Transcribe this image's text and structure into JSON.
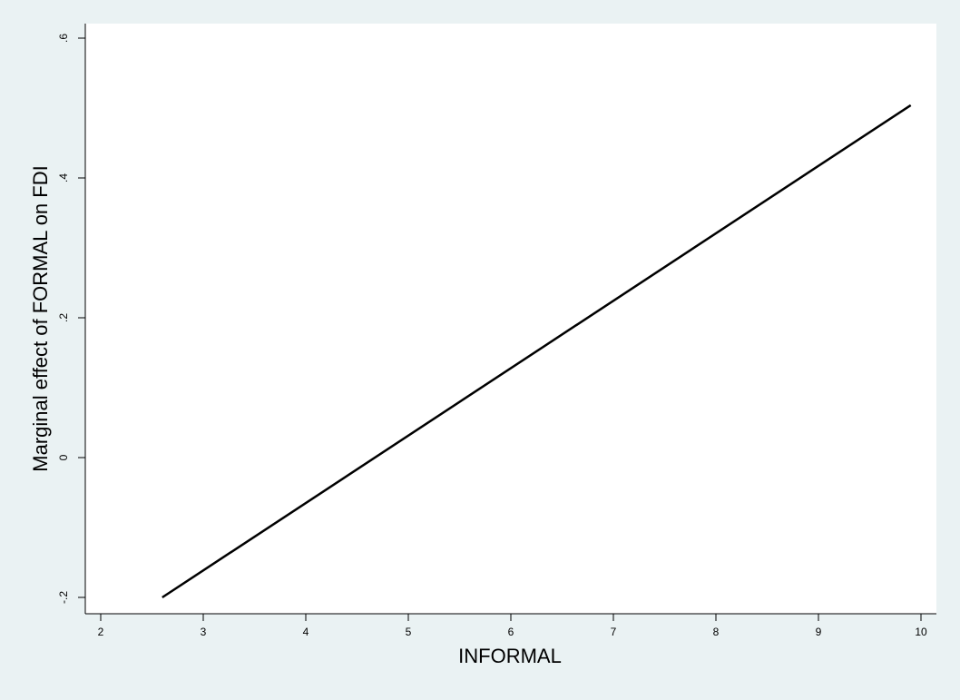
{
  "chart_data": {
    "type": "line",
    "xlabel": "INFORMAL",
    "ylabel": "Marginal effect of FORMAL on FDI",
    "xlim": [
      2,
      10
    ],
    "ylim": [
      -0.2,
      0.6
    ],
    "xticks": [
      2,
      3,
      4,
      5,
      6,
      7,
      8,
      9,
      10
    ],
    "xtick_labels": [
      "2",
      "3",
      "4",
      "5",
      "6",
      "7",
      "8",
      "9",
      "10"
    ],
    "yticks": [
      -0.2,
      0,
      0.2,
      0.4,
      0.6
    ],
    "ytick_labels": [
      "-.2",
      "0",
      ".2",
      ".4",
      ".6"
    ],
    "grid": false,
    "series": [
      {
        "x": [
          2.6,
          9.9
        ],
        "y": [
          -0.2,
          0.504
        ],
        "color": "#000000"
      }
    ]
  }
}
